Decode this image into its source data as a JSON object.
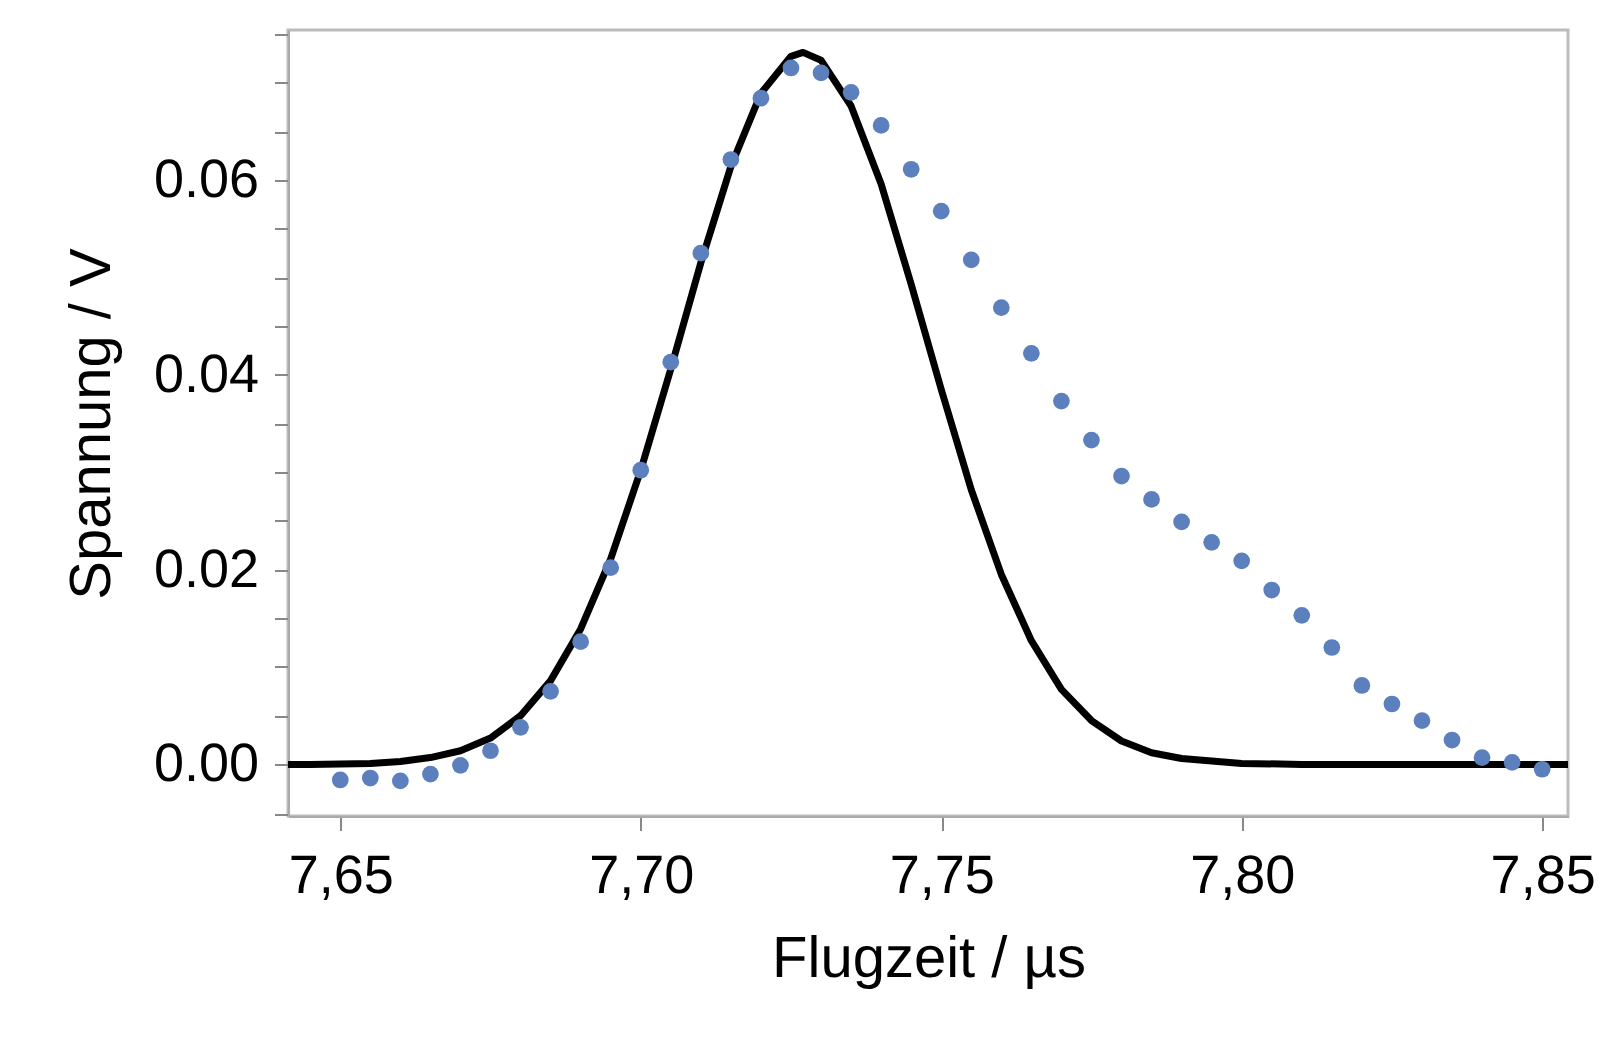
{
  "chart_data": {
    "type": "scatter",
    "xlabel": "Flugzeit / µs",
    "ylabel": "Spannung / V",
    "xlim": [
      7.6413,
      7.8543
    ],
    "ylim": [
      -0.0053,
      0.0754
    ],
    "xticks": [
      {
        "value": 7.65,
        "label": "7,65"
      },
      {
        "value": 7.7,
        "label": "7,70"
      },
      {
        "value": 7.75,
        "label": "7,75"
      },
      {
        "value": 7.8,
        "label": "7,80"
      },
      {
        "value": 7.85,
        "label": "7,85"
      }
    ],
    "yticks": [
      {
        "value": -0.005,
        "label": null
      },
      {
        "value": 0,
        "label": "0.00"
      },
      {
        "value": 0.005,
        "label": null
      },
      {
        "value": 0.01,
        "label": null
      },
      {
        "value": 0.015,
        "label": null
      },
      {
        "value": 0.02,
        "label": "0.02"
      },
      {
        "value": 0.025,
        "label": null
      },
      {
        "value": 0.03,
        "label": null
      },
      {
        "value": 0.035,
        "label": null
      },
      {
        "value": 0.04,
        "label": "0.04"
      },
      {
        "value": 0.045,
        "label": null
      },
      {
        "value": 0.05,
        "label": null
      },
      {
        "value": 0.055,
        "label": null
      },
      {
        "value": 0.06,
        "label": "0.06"
      },
      {
        "value": 0.065,
        "label": null
      },
      {
        "value": 0.07,
        "label": null
      },
      {
        "value": 0.075,
        "label": null
      }
    ],
    "grid": false,
    "legend": false,
    "marker": "circle",
    "series": [
      {
        "type": "scatter",
        "color": "#5b80bd",
        "x": [
          7.65,
          7.655,
          7.66,
          7.665,
          7.67,
          7.675,
          7.68,
          7.685,
          7.69,
          7.695,
          7.7,
          7.705,
          7.71,
          7.715,
          7.72,
          7.725,
          7.73,
          7.735,
          7.74,
          7.745,
          7.75,
          7.755,
          7.76,
          7.765,
          7.77,
          7.775,
          7.78,
          7.785,
          7.79,
          7.795,
          7.8,
          7.805,
          7.81,
          7.815,
          7.82,
          7.825,
          7.83,
          7.835,
          7.84,
          7.845,
          7.85
        ],
        "values": [
          -0.0016,
          -0.0014,
          -0.0017,
          -0.001,
          -0.0001,
          0.0014,
          0.0038,
          0.0075,
          0.0126,
          0.0202,
          0.0302,
          0.0413,
          0.0525,
          0.0621,
          0.0684,
          0.0715,
          0.071,
          0.069,
          0.0656,
          0.0611,
          0.0568,
          0.0518,
          0.0469,
          0.0422,
          0.0373,
          0.0333,
          0.0296,
          0.0272,
          0.0249,
          0.0228,
          0.0209,
          0.0179,
          0.0153,
          0.012,
          0.0081,
          0.0062,
          0.0045,
          0.0025,
          0.0007,
          0.0002,
          -0.0005
        ]
      },
      {
        "type": "line",
        "color": "#000000",
        "marker": "none",
        "line_style": "solid",
        "x": [
          7.6413,
          7.645,
          7.655,
          7.66,
          7.665,
          7.67,
          7.675,
          7.68,
          7.685,
          7.69,
          7.695,
          7.7,
          7.705,
          7.71,
          7.715,
          7.72,
          7.725,
          7.727,
          7.73,
          7.735,
          7.74,
          7.745,
          7.75,
          7.755,
          7.76,
          7.765,
          7.77,
          7.775,
          7.78,
          7.785,
          7.79,
          7.8,
          7.81,
          7.83,
          7.8543
        ],
        "values": [
          0,
          0,
          0.0001,
          0.0003,
          0.0007,
          0.0014,
          0.0027,
          0.005,
          0.0086,
          0.0139,
          0.0211,
          0.0302,
          0.0406,
          0.0515,
          0.0614,
          0.0689,
          0.0727,
          0.0731,
          0.0723,
          0.0676,
          0.0596,
          0.0493,
          0.0385,
          0.0282,
          0.0195,
          0.0127,
          0.0077,
          0.0045,
          0.0024,
          0.0012,
          0.0006,
          0.0001,
          0,
          0,
          0
        ]
      }
    ]
  }
}
